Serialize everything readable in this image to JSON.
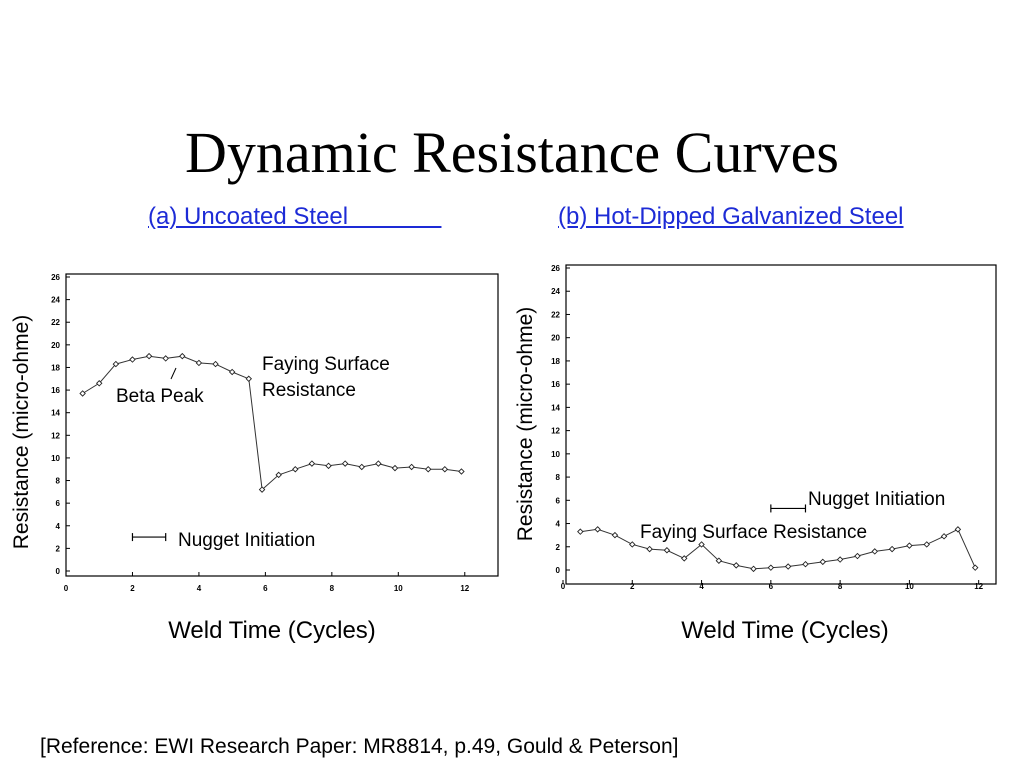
{
  "slide": {
    "title": "Dynamic Resistance Curves",
    "subtitle_a": "(a) Uncoated Steel              ",
    "subtitle_b": "(b) Hot-Dipped Galvanized Steel",
    "link_color": "#1d2bd6",
    "reference": "[Reference: EWI Research Paper: MR8814, p.49, Gould & Peterson]"
  },
  "chart_data": [
    {
      "type": "line",
      "title": "",
      "xlabel": "Weld Time (Cycles)",
      "ylabel": "Resistance (micro-ohme)",
      "xlim": [
        0,
        13
      ],
      "ylim": [
        0,
        26
      ],
      "x_ticks": [
        "0",
        "2",
        "4",
        "6",
        "8",
        "10",
        "12"
      ],
      "y_ticks": [
        "0",
        "2",
        "4",
        "6",
        "8",
        "10",
        "12",
        "14",
        "16",
        "18",
        "20",
        "22",
        "24",
        "26"
      ],
      "grid": false,
      "series": [
        {
          "x": [
            0.5,
            1.0,
            1.5,
            2.0,
            2.5,
            3.0,
            3.5,
            4.0,
            4.5,
            5.0,
            5.5,
            5.9,
            6.4,
            6.9,
            7.4,
            7.9,
            8.4,
            8.9,
            9.4,
            9.9,
            10.4,
            10.9,
            11.4,
            11.9
          ],
          "y": [
            15.7,
            16.6,
            18.3,
            18.7,
            19.0,
            18.8,
            19.0,
            18.4,
            18.3,
            17.6,
            17.0,
            7.2,
            8.5,
            9.0,
            9.5,
            9.3,
            9.5,
            9.2,
            9.5,
            9.1,
            9.2,
            9.0,
            9.0,
            8.8
          ]
        }
      ],
      "annotations": [
        {
          "text": "Beta Peak",
          "x": 2.7,
          "y": 16.0
        },
        {
          "text": "Faying Surface",
          "x": 5.9,
          "y": 19.7
        },
        {
          "text": "Resistance",
          "x": 5.9,
          "y": 17.3
        },
        {
          "text": "Nugget Initiation",
          "x": 3.4,
          "y": 2.3
        }
      ],
      "nugget_bar": {
        "x_start": 2.0,
        "x_end": 3.0,
        "y": 3.0
      }
    },
    {
      "type": "line",
      "title": "",
      "xlabel": "Weld Time (Cycles)",
      "ylabel": "Resistance (micro-ohme)",
      "xlim": [
        0,
        12.5
      ],
      "ylim": [
        0,
        26
      ],
      "x_ticks": [
        "0",
        "2",
        "4",
        "6",
        "8",
        "10",
        "12"
      ],
      "y_ticks": [
        "0",
        "2",
        "4",
        "6",
        "8",
        "10",
        "12",
        "14",
        "16",
        "18",
        "20",
        "22",
        "24",
        "26"
      ],
      "grid": false,
      "series": [
        {
          "x": [
            0.5,
            1.0,
            1.5,
            2.0,
            2.5,
            3.0,
            3.5,
            4.0,
            4.5,
            5.0,
            5.5,
            6.0,
            6.5,
            7.0,
            7.5,
            8.0,
            8.5,
            9.0,
            9.5,
            10.0,
            10.5,
            11.0,
            11.4,
            11.9
          ],
          "y": [
            3.3,
            3.5,
            3.0,
            2.2,
            1.8,
            1.7,
            1.0,
            2.2,
            0.8,
            0.4,
            0.1,
            0.2,
            0.3,
            0.5,
            0.7,
            0.9,
            1.2,
            1.6,
            1.8,
            2.1,
            2.2,
            2.9,
            3.5,
            0.2
          ]
        }
      ],
      "annotations": [
        {
          "text": "Nugget Initiation",
          "x": 6.9,
          "y": 5.7
        },
        {
          "text": "Faying Surface Resistance",
          "x": 2.0,
          "y": 3.1
        }
      ],
      "nugget_bar": {
        "x_start": 6.0,
        "x_end": 7.0,
        "y": 5.3
      }
    }
  ]
}
